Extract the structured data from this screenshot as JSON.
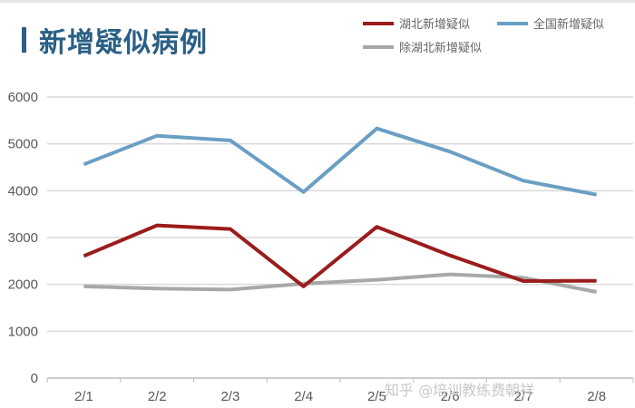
{
  "header": {
    "title": "新增疑似病例"
  },
  "legend": [
    {
      "label": "湖北新增疑似",
      "color": "#9b1c1c"
    },
    {
      "label": "全国新增疑似",
      "color": "#6a9fc4"
    },
    {
      "label": "除湖北新增疑似",
      "color": "#a8a8a8"
    }
  ],
  "watermark": "知乎 @培训教练费朝祥",
  "chart_data": {
    "type": "line",
    "title": "新增疑似病例",
    "xlabel": "",
    "ylabel": "",
    "categories": [
      "2/1",
      "2/2",
      "2/3",
      "2/4",
      "2/5",
      "2/6",
      "2/7",
      "2/8"
    ],
    "yticks": [
      0,
      1000,
      2000,
      3000,
      4000,
      5000,
      6000
    ],
    "ylim": [
      0,
      6000
    ],
    "grid": true,
    "legend_position": "top-right",
    "series": [
      {
        "name": "湖北新增疑似",
        "color": "#9b1c1c",
        "values": [
          2606,
          3260,
          3182,
          1957,
          3229,
          2618,
          2071,
          2077
        ]
      },
      {
        "name": "全国新增疑似",
        "color": "#6a9fc4",
        "values": [
          4562,
          5173,
          5072,
          3971,
          5328,
          4833,
          4214,
          3916
        ]
      },
      {
        "name": "除湖北新增疑似",
        "color": "#a8a8a8",
        "values": [
          1956,
          1913,
          1890,
          2014,
          2099,
          2215,
          2143,
          1839
        ]
      }
    ]
  }
}
